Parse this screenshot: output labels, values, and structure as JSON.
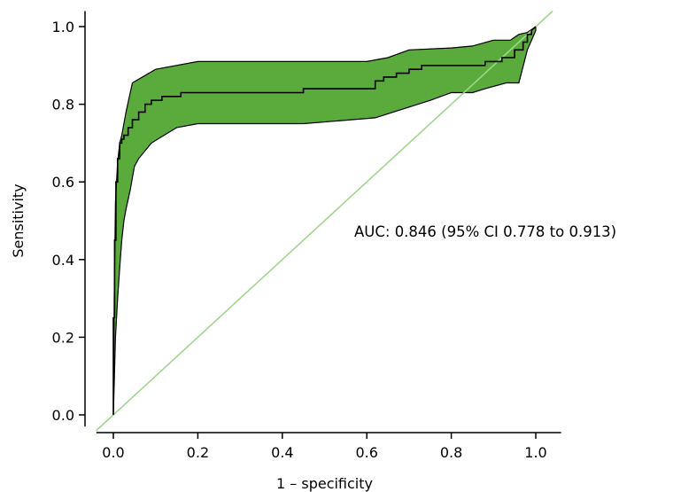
{
  "chart_data": {
    "type": "line",
    "xlabel": "1 – specificity",
    "ylabel": "Sensitivity",
    "xlim": [
      -0.04,
      1.06
    ],
    "ylim": [
      -0.03,
      1.04
    ],
    "grid": false,
    "x_ticks": [
      0.0,
      0.2,
      0.4,
      0.6,
      0.8,
      1.0
    ],
    "y_ticks": [
      0.0,
      0.2,
      0.4,
      0.6,
      0.8,
      1.0
    ],
    "x_tick_labels": [
      "0.0",
      "0.2",
      "0.4",
      "0.6",
      "0.8",
      "1.0"
    ],
    "y_tick_labels": [
      "0.0",
      "0.2",
      "0.4",
      "0.6",
      "0.8",
      "1.0"
    ],
    "annotation": "AUC: 0.846 (95% CI 0.778 to 0.913)",
    "colors": {
      "ci_band": "#5aaa3c",
      "reference_line": "#9fd68f",
      "roc_line": "#000000"
    },
    "reference_line": {
      "x": [
        -0.04,
        1.04
      ],
      "y": [
        -0.04,
        1.04
      ]
    },
    "series": [
      {
        "role": "roc-curve",
        "x": [
          0.0,
          0.0,
          0.003,
          0.003,
          0.006,
          0.006,
          0.01,
          0.01,
          0.015,
          0.015,
          0.02,
          0.02,
          0.025,
          0.025,
          0.035,
          0.035,
          0.045,
          0.045,
          0.06,
          0.06,
          0.075,
          0.075,
          0.09,
          0.09,
          0.115,
          0.115,
          0.16,
          0.16,
          0.2,
          0.2,
          0.45,
          0.45,
          0.62,
          0.62,
          0.64,
          0.64,
          0.67,
          0.67,
          0.7,
          0.7,
          0.73,
          0.73,
          0.76,
          0.76,
          0.8,
          0.8,
          0.88,
          0.88,
          0.92,
          0.92,
          0.95,
          0.95,
          0.97,
          0.97,
          0.98,
          0.98,
          0.99,
          0.99,
          1.0
        ],
        "y": [
          0.0,
          0.25,
          0.25,
          0.45,
          0.45,
          0.6,
          0.6,
          0.66,
          0.66,
          0.7,
          0.7,
          0.71,
          0.71,
          0.72,
          0.72,
          0.74,
          0.74,
          0.76,
          0.76,
          0.78,
          0.78,
          0.8,
          0.8,
          0.81,
          0.81,
          0.82,
          0.82,
          0.83,
          0.83,
          0.83,
          0.83,
          0.84,
          0.84,
          0.86,
          0.86,
          0.87,
          0.87,
          0.88,
          0.88,
          0.89,
          0.89,
          0.9,
          0.9,
          0.9,
          0.9,
          0.9,
          0.9,
          0.91,
          0.91,
          0.92,
          0.92,
          0.94,
          0.94,
          0.96,
          0.96,
          0.98,
          0.98,
          0.99,
          1.0
        ]
      },
      {
        "role": "ci-upper",
        "x": [
          0.0,
          0.002,
          0.005,
          0.01,
          0.015,
          0.02,
          0.03,
          0.045,
          0.1,
          0.2,
          0.4,
          0.6,
          0.65,
          0.7,
          0.8,
          0.85,
          0.9,
          0.94,
          0.96,
          0.98,
          1.0
        ],
        "y": [
          0.0,
          0.3,
          0.55,
          0.65,
          0.7,
          0.72,
          0.78,
          0.855,
          0.89,
          0.91,
          0.91,
          0.91,
          0.92,
          0.94,
          0.945,
          0.95,
          0.965,
          0.965,
          0.98,
          0.985,
          1.0
        ]
      },
      {
        "role": "ci-lower",
        "x": [
          0.0,
          0.005,
          0.01,
          0.015,
          0.02,
          0.025,
          0.03,
          0.04,
          0.05,
          0.06,
          0.09,
          0.12,
          0.15,
          0.2,
          0.45,
          0.62,
          0.75,
          0.8,
          0.85,
          0.88,
          0.93,
          0.96,
          0.98,
          1.0
        ],
        "y": [
          0.0,
          0.2,
          0.3,
          0.38,
          0.45,
          0.5,
          0.53,
          0.58,
          0.64,
          0.66,
          0.7,
          0.72,
          0.74,
          0.75,
          0.75,
          0.765,
          0.81,
          0.83,
          0.83,
          0.84,
          0.855,
          0.855,
          0.94,
          0.99
        ]
      }
    ]
  }
}
